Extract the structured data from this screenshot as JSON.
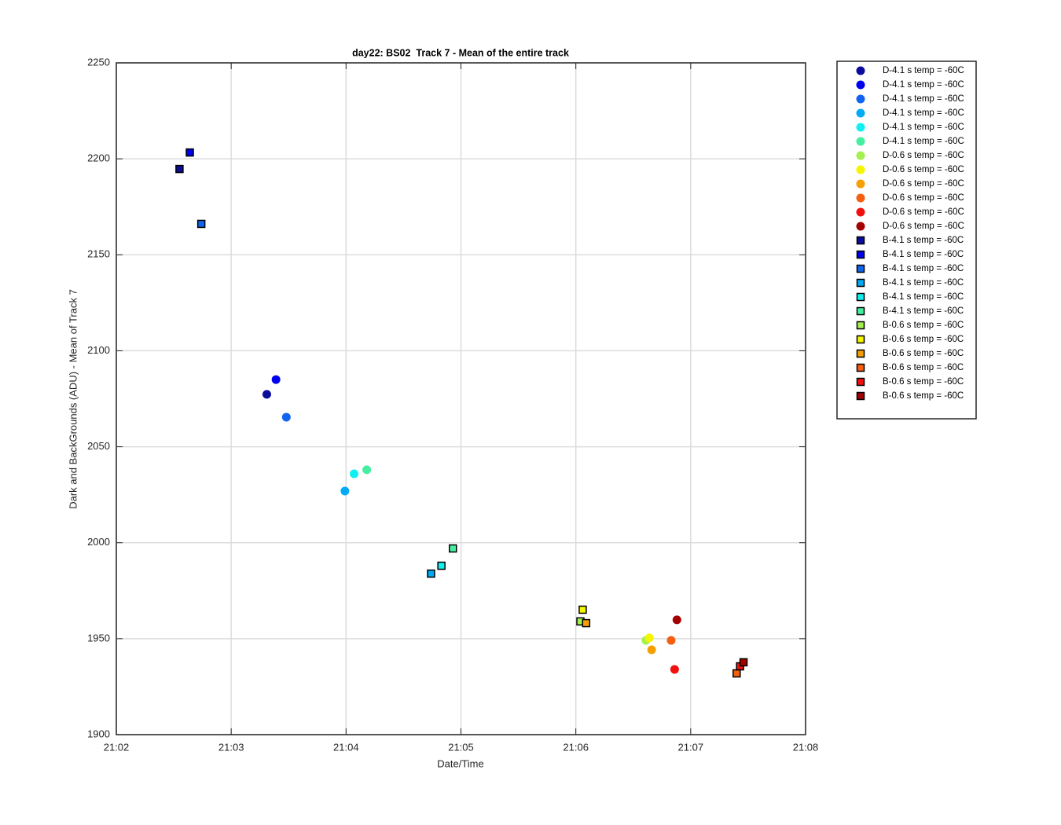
{
  "chart_data": {
    "type": "scatter",
    "title": "day22: BS02  Track 7 - Mean of the entire track",
    "xlabel": "Date/Time",
    "ylabel": "Dark and BackGrounds (ADU) - Mean of Track 7",
    "xlim": [
      1262,
      1268
    ],
    "xticks": [
      {
        "value": 1262,
        "label": "21:02"
      },
      {
        "value": 1263,
        "label": "21:03"
      },
      {
        "value": 1264,
        "label": "21:04"
      },
      {
        "value": 1265,
        "label": "21:05"
      },
      {
        "value": 1266,
        "label": "21:06"
      },
      {
        "value": 1267,
        "label": "21:07"
      },
      {
        "value": 1268,
        "label": "21:08"
      }
    ],
    "ylim": [
      1900,
      2250
    ],
    "yticks": [
      1900,
      1950,
      2000,
      2050,
      2100,
      2150,
      2200,
      2250
    ],
    "grid": true,
    "legend": "outside-right",
    "series": [
      {
        "name": "D-4.1 s temp = -60C",
        "color": "#0c0c9c",
        "marker": "circle",
        "x": [
          1263.31
        ],
        "values": [
          2077.3
        ]
      },
      {
        "name": "D-4.1 s temp = -60C",
        "color": "#0000f0",
        "marker": "circle",
        "x": [
          1263.39
        ],
        "values": [
          2085.0
        ]
      },
      {
        "name": "D-4.1 s temp = -60C",
        "color": "#1064f0",
        "marker": "circle",
        "x": [
          1263.48
        ],
        "values": [
          2065.4
        ]
      },
      {
        "name": "D-4.1 s temp = -60C",
        "color": "#00aaf5",
        "marker": "circle",
        "x": [
          1263.99
        ],
        "values": [
          2026.9
        ]
      },
      {
        "name": "D-4.1 s temp = -60C",
        "color": "#10f0f0",
        "marker": "circle",
        "x": [
          1264.07
        ],
        "values": [
          2035.9
        ]
      },
      {
        "name": "D-4.1 s temp = -60C",
        "color": "#44f0a0",
        "marker": "circle",
        "x": [
          1264.18
        ],
        "values": [
          2038.0
        ]
      },
      {
        "name": "D-0.6 s temp = -60C",
        "color": "#a4f050",
        "marker": "circle",
        "x": [
          1266.61
        ],
        "values": [
          1949.1
        ]
      },
      {
        "name": "D-0.6 s temp = -60C",
        "color": "#f5f500",
        "marker": "circle",
        "x": [
          1266.64
        ],
        "values": [
          1950.4
        ]
      },
      {
        "name": "D-0.6 s temp = -60C",
        "color": "#f5a000",
        "marker": "circle",
        "x": [
          1266.66
        ],
        "values": [
          1944.2
        ]
      },
      {
        "name": "D-0.6 s temp = -60C",
        "color": "#f56010",
        "marker": "circle",
        "x": [
          1266.83
        ],
        "values": [
          1949.1
        ]
      },
      {
        "name": "D-0.6 s temp = -60C",
        "color": "#f01010",
        "marker": "circle",
        "x": [
          1266.86
        ],
        "values": [
          1934.0
        ]
      },
      {
        "name": "D-0.6 s temp = -60C",
        "color": "#a40000",
        "marker": "circle",
        "x": [
          1266.88
        ],
        "values": [
          1959.8
        ]
      },
      {
        "name": "B-4.1 s temp = -60C",
        "color": "#0c0c9c",
        "marker": "square",
        "x": [
          1262.55
        ],
        "values": [
          2194.7
        ]
      },
      {
        "name": "B-4.1 s temp = -60C",
        "color": "#0000f0",
        "marker": "square",
        "x": [
          1262.64
        ],
        "values": [
          2203.3
        ]
      },
      {
        "name": "B-4.1 s temp = -60C",
        "color": "#1064f0",
        "marker": "square",
        "x": [
          1262.74
        ],
        "values": [
          2166.1
        ]
      },
      {
        "name": "B-4.1 s temp = -60C",
        "color": "#00aaf5",
        "marker": "square",
        "x": [
          1264.74
        ],
        "values": [
          1983.9
        ]
      },
      {
        "name": "B-4.1 s temp = -60C",
        "color": "#10f0f0",
        "marker": "square",
        "x": [
          1264.83
        ],
        "values": [
          1988.0
        ]
      },
      {
        "name": "B-4.1 s temp = -60C",
        "color": "#44f0a0",
        "marker": "square",
        "x": [
          1264.93
        ],
        "values": [
          1997.0
        ]
      },
      {
        "name": "B-0.6 s temp = -60C",
        "color": "#a4f050",
        "marker": "square",
        "x": [
          1266.04
        ],
        "values": [
          1959.0
        ]
      },
      {
        "name": "B-0.6 s temp = -60C",
        "color": "#f5f500",
        "marker": "square",
        "x": [
          1266.06
        ],
        "values": [
          1965.1
        ]
      },
      {
        "name": "B-0.6 s temp = -60C",
        "color": "#f5a000",
        "marker": "square",
        "x": [
          1266.09
        ],
        "values": [
          1958.1
        ]
      },
      {
        "name": "B-0.6 s temp = -60C",
        "color": "#f56010",
        "marker": "square",
        "x": [
          1267.4
        ],
        "values": [
          1931.9
        ]
      },
      {
        "name": "B-0.6 s temp = -60C",
        "color": "#f01010",
        "marker": "square",
        "x": [
          1267.43
        ],
        "values": [
          1935.6
        ]
      },
      {
        "name": "B-0.6 s temp = -60C",
        "color": "#a40000",
        "marker": "square",
        "x": [
          1267.46
        ],
        "values": [
          1937.7
        ]
      }
    ]
  }
}
